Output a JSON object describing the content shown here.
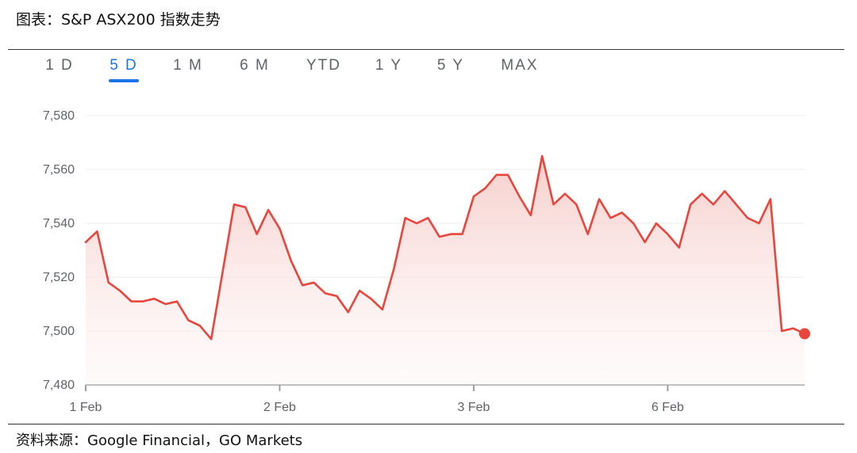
{
  "figure": {
    "title": "图表：S&P ASX200 指数走势",
    "source": "资料来源：Google Financial，GO Markets"
  },
  "tabs": {
    "items": [
      "1 D",
      "5 D",
      "1 M",
      "6 M",
      "YTD",
      "1 Y",
      "5 Y",
      "MAX"
    ],
    "active_index": 1
  },
  "colors": {
    "line": "#e8453c",
    "accent": "#1a73e8"
  },
  "chart_data": {
    "type": "area",
    "title": "",
    "xlabel": "",
    "ylabel": "",
    "ylim": [
      7480,
      7580
    ],
    "yticks": [
      "7,580",
      "7,560",
      "7,540",
      "7,520",
      "7,500",
      "7,480"
    ],
    "xticks": [
      "1 Feb",
      "2 Feb",
      "3 Feb",
      "6 Feb"
    ],
    "xtick_positions": [
      0,
      17,
      34,
      51
    ],
    "grid": "horizontal",
    "legend": "none",
    "series": [
      {
        "values": [
          7533,
          7537,
          7518,
          7515,
          7511,
          7511,
          7512,
          7510,
          7511,
          7504,
          7502,
          7497,
          7522,
          7547,
          7546,
          7536,
          7545,
          7538,
          7526,
          7517,
          7518,
          7514,
          7513,
          7507,
          7515,
          7512,
          7508,
          7523,
          7542,
          7540,
          7542,
          7535,
          7536,
          7536,
          7550,
          7553,
          7558,
          7558,
          7550,
          7543,
          7565,
          7547,
          7551,
          7547,
          7536,
          7549,
          7542,
          7544,
          7540,
          7533,
          7540,
          7536,
          7531,
          7547,
          7551,
          7547,
          7552,
          7547,
          7542,
          7540,
          7549,
          7500,
          7501,
          7499
        ]
      }
    ]
  }
}
